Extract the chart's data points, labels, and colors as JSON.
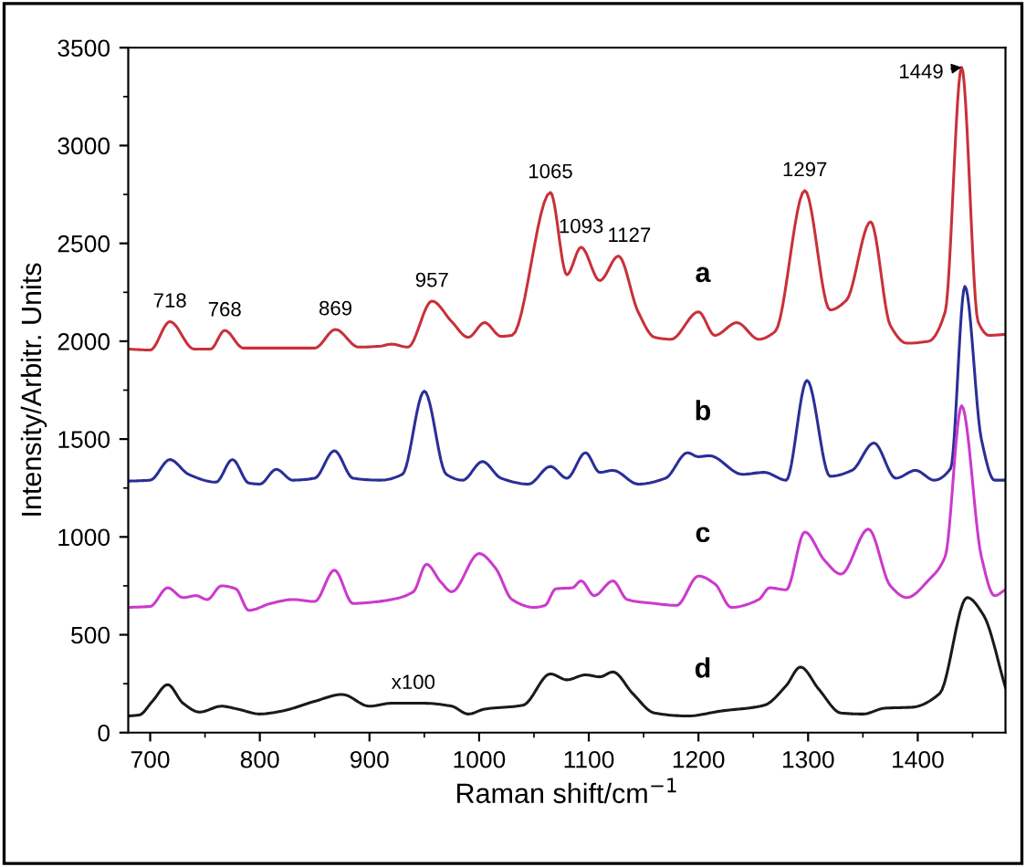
{
  "chart_data": {
    "type": "line",
    "xlabel": "Raman shift/cm$^{−1}$",
    "ylabel": "Intensity/Arbitr. Units",
    "xlim": [
      680,
      1480
    ],
    "xticks": [
      700,
      800,
      900,
      1000,
      1100,
      1200,
      1300,
      1400
    ],
    "ylim": [
      0,
      3500
    ],
    "yticks": [
      0,
      500,
      1000,
      1500,
      2000,
      2500,
      3000,
      3500
    ],
    "grid": false,
    "legend": false,
    "marker": "none",
    "line_style": "solid",
    "series": [
      {
        "name": "a",
        "color": "#c8313a",
        "x": [
          680,
          700,
          718,
          740,
          755,
          768,
          785,
          850,
          869,
          890,
          910,
          920,
          935,
          957,
          975,
          990,
          1005,
          1020,
          1030,
          1065,
          1080,
          1093,
          1110,
          1127,
          1145,
          1160,
          1175,
          1200,
          1215,
          1235,
          1255,
          1270,
          1297,
          1320,
          1335,
          1357,
          1375,
          1390,
          1410,
          1425,
          1440,
          1455,
          1465,
          1480
        ],
        "values": [
          1960,
          1955,
          2100,
          1960,
          1960,
          2055,
          1965,
          1965,
          2060,
          1970,
          1975,
          1985,
          1970,
          2205,
          2100,
          2020,
          2095,
          2025,
          2030,
          2760,
          2340,
          2480,
          2310,
          2435,
          2150,
          2020,
          2010,
          2150,
          2030,
          2095,
          2010,
          2050,
          2770,
          2160,
          2210,
          2610,
          2080,
          1990,
          2000,
          2150,
          3400,
          2100,
          2030,
          2035
        ]
      },
      {
        "name": "b",
        "color": "#2a2f96",
        "x": [
          680,
          700,
          718,
          735,
          760,
          775,
          790,
          800,
          815,
          830,
          850,
          868,
          885,
          910,
          930,
          950,
          970,
          985,
          1003,
          1020,
          1045,
          1065,
          1080,
          1097,
          1110,
          1122,
          1145,
          1170,
          1190,
          1200,
          1210,
          1240,
          1260,
          1280,
          1299,
          1320,
          1340,
          1360,
          1380,
          1398,
          1415,
          1430,
          1443,
          1458,
          1470,
          1480
        ],
        "values": [
          1285,
          1290,
          1395,
          1320,
          1280,
          1395,
          1275,
          1270,
          1345,
          1290,
          1300,
          1440,
          1300,
          1290,
          1320,
          1745,
          1320,
          1290,
          1385,
          1300,
          1270,
          1360,
          1300,
          1430,
          1330,
          1340,
          1270,
          1300,
          1430,
          1410,
          1415,
          1320,
          1330,
          1290,
          1800,
          1310,
          1340,
          1480,
          1300,
          1340,
          1290,
          1350,
          2280,
          1500,
          1290,
          1290
        ]
      },
      {
        "name": "c",
        "color": "#cc3acc",
        "x": [
          680,
          700,
          716,
          730,
          742,
          752,
          765,
          778,
          790,
          810,
          830,
          850,
          868,
          885,
          900,
          920,
          940,
          952,
          965,
          975,
          1000,
          1015,
          1030,
          1050,
          1060,
          1070,
          1085,
          1093,
          1105,
          1122,
          1135,
          1160,
          1180,
          1200,
          1215,
          1230,
          1255,
          1265,
          1280,
          1297,
          1315,
          1330,
          1355,
          1375,
          1390,
          1410,
          1425,
          1440,
          1458,
          1470,
          1480
        ],
        "values": [
          640,
          645,
          740,
          690,
          700,
          680,
          750,
          735,
          625,
          660,
          680,
          670,
          830,
          660,
          665,
          680,
          720,
          860,
          770,
          720,
          915,
          840,
          680,
          640,
          650,
          735,
          740,
          775,
          700,
          775,
          680,
          660,
          650,
          800,
          760,
          640,
          680,
          740,
          730,
          1025,
          880,
          810,
          1040,
          750,
          690,
          780,
          900,
          1670,
          900,
          700,
          730
        ]
      },
      {
        "name": "d",
        "color": "#1a1a1a",
        "x": [
          680,
          690,
          702,
          716,
          730,
          745,
          765,
          780,
          800,
          820,
          850,
          875,
          900,
          920,
          950,
          975,
          990,
          1005,
          1040,
          1065,
          1080,
          1097,
          1110,
          1122,
          1140,
          1160,
          1190,
          1220,
          1260,
          1280,
          1293,
          1310,
          1330,
          1350,
          1370,
          1395,
          1420,
          1445,
          1460,
          1480
        ],
        "values": [
          85,
          90,
          160,
          245,
          150,
          105,
          135,
          120,
          95,
          110,
          160,
          195,
          135,
          150,
          150,
          135,
          95,
          120,
          140,
          300,
          270,
          295,
          285,
          310,
          200,
          100,
          85,
          110,
          140,
          240,
          335,
          220,
          100,
          95,
          125,
          130,
          200,
          690,
          600,
          230
        ]
      }
    ],
    "annotations": [
      {
        "text": "718",
        "x": 718,
        "y": 2100
      },
      {
        "text": "768",
        "x": 768,
        "y": 2055
      },
      {
        "text": "869",
        "x": 869,
        "y": 2060
      },
      {
        "text": "957",
        "x": 957,
        "y": 2205
      },
      {
        "text": "1065",
        "x": 1065,
        "y": 2760
      },
      {
        "text": "1093",
        "x": 1093,
        "y": 2480
      },
      {
        "text": "1127",
        "x": 1127,
        "y": 2435
      },
      {
        "text": "1297",
        "x": 1297,
        "y": 2770
      },
      {
        "text": "1449",
        "x": 1440,
        "y": 3400
      },
      {
        "text": "x100",
        "x": 940,
        "y": 150
      }
    ]
  }
}
